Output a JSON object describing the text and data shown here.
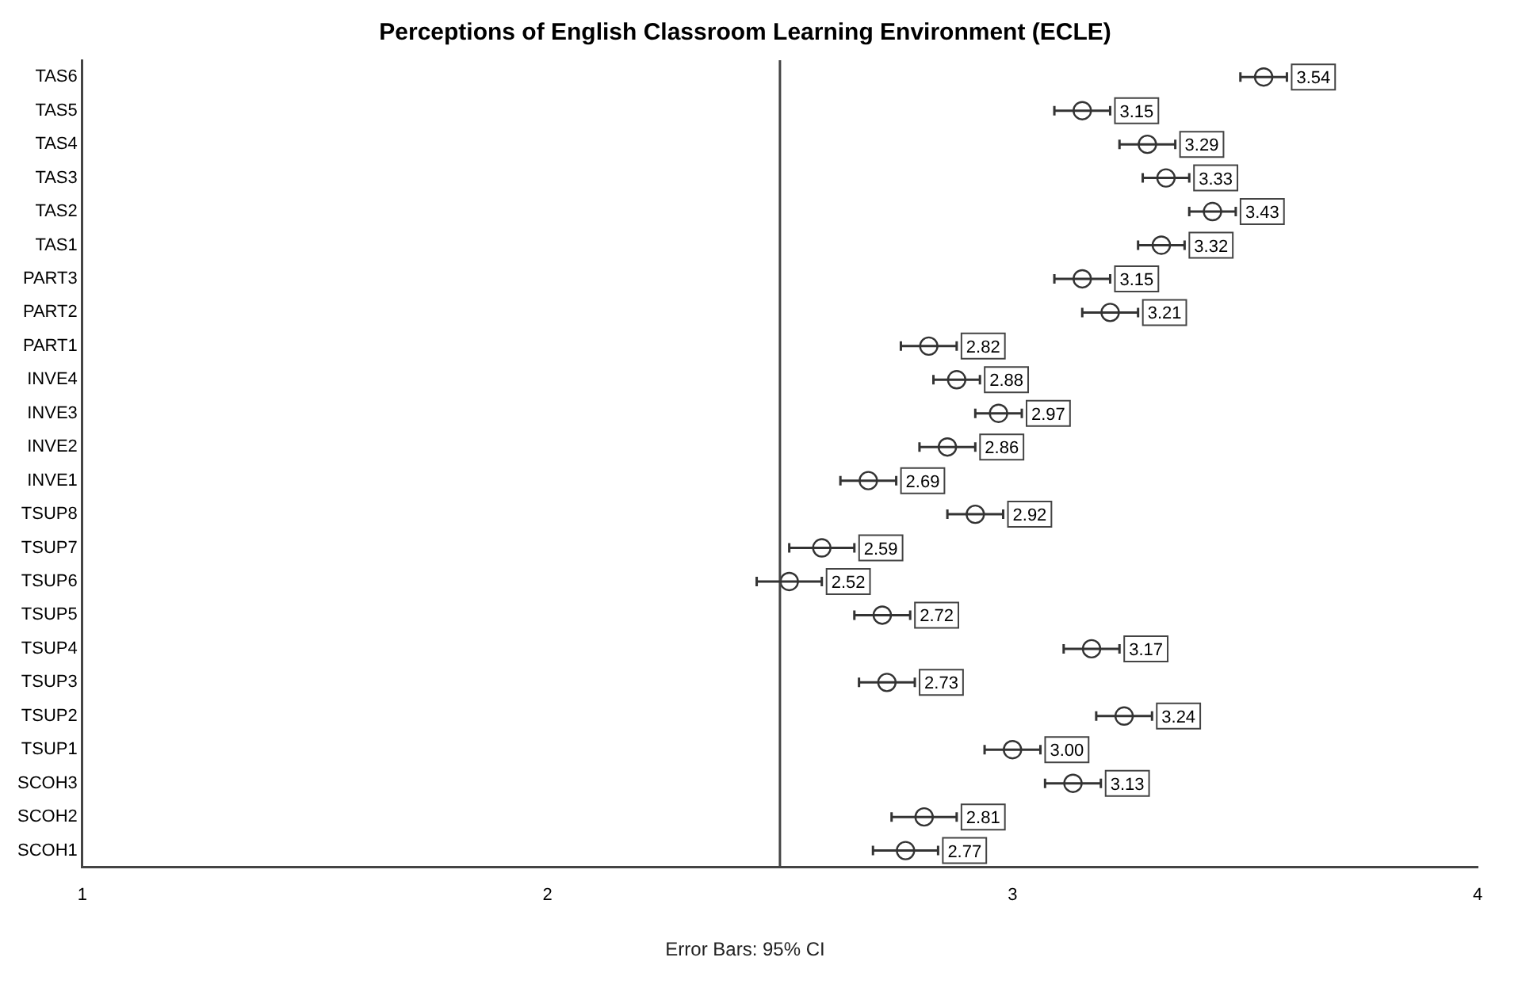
{
  "chart_data": {
    "type": "scatter",
    "orientation": "horizontal",
    "title": "Perceptions of English Classroom Learning Environment (ECLE)",
    "categories": [
      "TAS6",
      "TAS5",
      "TAS4",
      "TAS3",
      "TAS2",
      "TAS1",
      "PART3",
      "PART2",
      "PART1",
      "INVE4",
      "INVE3",
      "INVE2",
      "INVE1",
      "TSUP8",
      "TSUP7",
      "TSUP6",
      "TSUP5",
      "TSUP4",
      "TSUP3",
      "TSUP2",
      "TSUP1",
      "SCOH3",
      "SCOH2",
      "SCOH1"
    ],
    "values": [
      3.54,
      3.15,
      3.29,
      3.33,
      3.43,
      3.32,
      3.15,
      3.21,
      2.82,
      2.88,
      2.97,
      2.86,
      2.69,
      2.92,
      2.59,
      2.52,
      2.72,
      3.17,
      2.73,
      3.24,
      3.0,
      3.13,
      2.81,
      2.77
    ],
    "errors": [
      0.05,
      0.06,
      0.06,
      0.05,
      0.05,
      0.05,
      0.06,
      0.06,
      0.06,
      0.05,
      0.05,
      0.06,
      0.06,
      0.06,
      0.07,
      0.07,
      0.06,
      0.06,
      0.06,
      0.06,
      0.06,
      0.06,
      0.07,
      0.07
    ],
    "value_labels": [
      "3.54",
      "3.15",
      "3.29",
      "3.33",
      "3.43",
      "3.32",
      "3.15",
      "3.21",
      "2.82",
      "2.88",
      "2.97",
      "2.86",
      "2.69",
      "2.92",
      "2.59",
      "2.52",
      "2.72",
      "3.17",
      "2.73",
      "3.24",
      "3.00",
      "3.13",
      "2.81",
      "2.77"
    ],
    "color": "#333333",
    "marker": "circle",
    "grid": false,
    "xlim": [
      1,
      4
    ],
    "xticks": [
      1,
      2,
      3,
      4
    ],
    "ref_lines": [
      {
        "axis": "x",
        "value": 2.5,
        "color": "#444444"
      }
    ],
    "annotations": [
      "Error Bars: 95% CI"
    ]
  }
}
